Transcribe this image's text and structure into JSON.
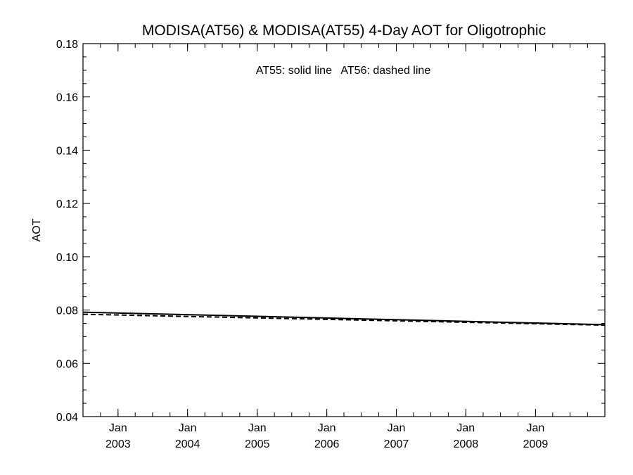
{
  "chart_data": {
    "type": "line",
    "title": "MODISA(AT56) & MODISA(AT55) 4-Day AOT for Oligotrophic",
    "xlabel": "",
    "ylabel": "AOT",
    "annotation": "AT55: solid line   AT56: dashed line",
    "xlim": [
      "2002-07-01",
      "2009-12-31"
    ],
    "ylim": [
      0.04,
      0.18
    ],
    "yticks": [
      "0.04",
      "0.06",
      "0.08",
      "0.10",
      "0.12",
      "0.14",
      "0.16",
      "0.18"
    ],
    "xticks": [
      {
        "month": "Jan",
        "year": "2003",
        "date": "2003-01-01"
      },
      {
        "month": "Jan",
        "year": "2004",
        "date": "2004-01-01"
      },
      {
        "month": "Jan",
        "year": "2005",
        "date": "2005-01-01"
      },
      {
        "month": "Jan",
        "year": "2006",
        "date": "2006-01-01"
      },
      {
        "month": "Jan",
        "year": "2007",
        "date": "2007-01-01"
      },
      {
        "month": "Jan",
        "year": "2008",
        "date": "2008-01-01"
      },
      {
        "month": "Jan",
        "year": "2009",
        "date": "2009-01-01"
      }
    ],
    "grid": false,
    "legend": "none",
    "series": [
      {
        "style": "solid",
        "color": "#000000",
        "x": [
          "2002-07-01",
          "2009-12-31"
        ],
        "y": [
          0.0792,
          0.0745
        ]
      },
      {
        "style": "dashed",
        "color": "#000000",
        "x": [
          "2002-07-01",
          "2009-12-31"
        ],
        "y": [
          0.0784,
          0.0743
        ]
      }
    ]
  }
}
